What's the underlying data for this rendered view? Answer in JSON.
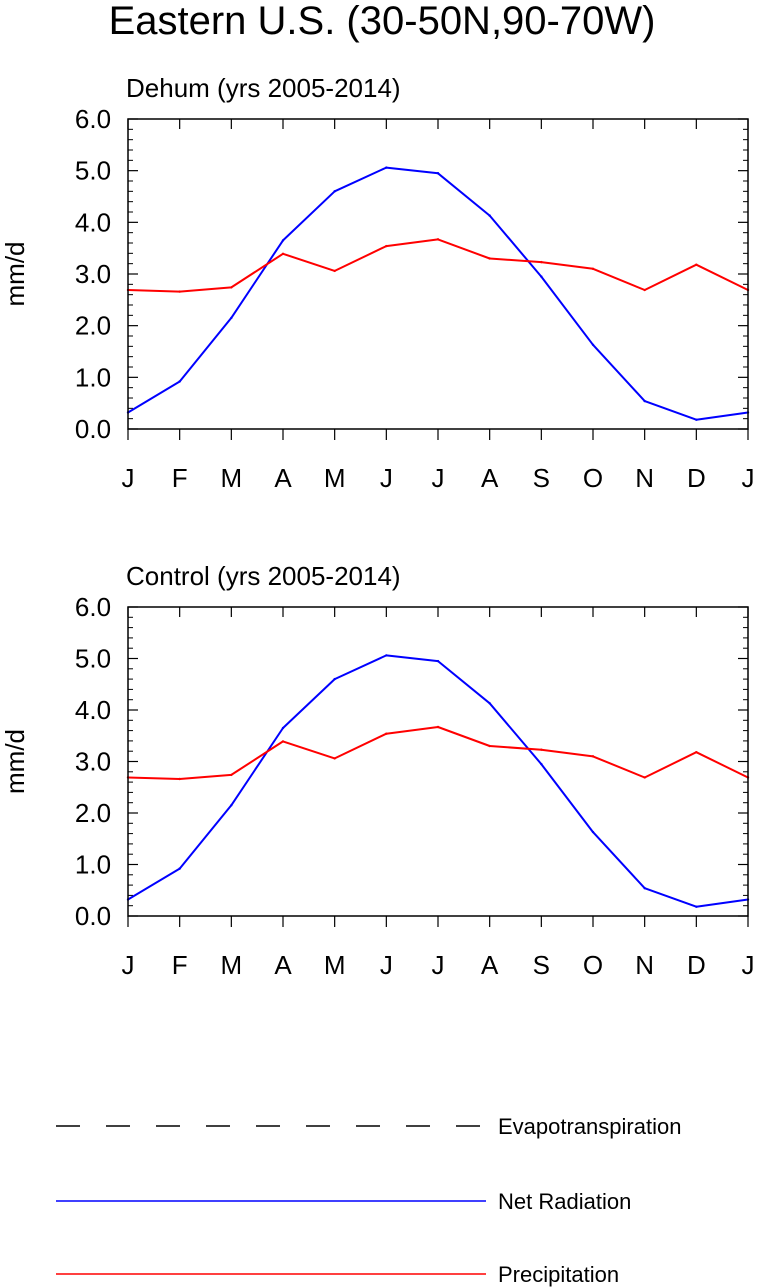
{
  "figure_title": "Eastern U.S. (30-50N,90-70W)",
  "chart_data": [
    {
      "type": "line",
      "title": "Dehum (yrs 2005-2014)",
      "xlabel": "",
      "ylabel": "mm/d",
      "categories": [
        "J",
        "F",
        "M",
        "A",
        "M",
        "J",
        "J",
        "A",
        "S",
        "O",
        "N",
        "D",
        "J"
      ],
      "ylim": [
        0,
        6
      ],
      "yticks": [
        "0.0",
        "1.0",
        "2.0",
        "3.0",
        "4.0",
        "5.0",
        "6.0"
      ],
      "grid": false,
      "series": [
        {
          "name": "Net Radiation",
          "color": "#0000ff",
          "values": [
            0.32,
            0.92,
            2.15,
            3.65,
            4.6,
            5.06,
            4.95,
            4.13,
            2.95,
            1.63,
            0.54,
            0.18,
            0.32
          ]
        },
        {
          "name": "Precipitation",
          "color": "#ff0000",
          "values": [
            2.69,
            2.66,
            2.74,
            3.39,
            3.06,
            3.54,
            3.67,
            3.3,
            3.23,
            3.1,
            2.69,
            3.18,
            2.69
          ]
        }
      ]
    },
    {
      "type": "line",
      "title": "Control (yrs 2005-2014)",
      "xlabel": "",
      "ylabel": "mm/d",
      "categories": [
        "J",
        "F",
        "M",
        "A",
        "M",
        "J",
        "J",
        "A",
        "S",
        "O",
        "N",
        "D",
        "J"
      ],
      "ylim": [
        0,
        6
      ],
      "yticks": [
        "0.0",
        "1.0",
        "2.0",
        "3.0",
        "4.0",
        "5.0",
        "6.0"
      ],
      "grid": false,
      "series": [
        {
          "name": "Net Radiation",
          "color": "#0000ff",
          "values": [
            0.32,
            0.92,
            2.15,
            3.65,
            4.6,
            5.06,
            4.95,
            4.13,
            2.95,
            1.63,
            0.54,
            0.18,
            0.32
          ]
        },
        {
          "name": "Precipitation",
          "color": "#ff0000",
          "values": [
            2.69,
            2.66,
            2.74,
            3.39,
            3.06,
            3.54,
            3.67,
            3.3,
            3.23,
            3.1,
            2.69,
            3.18,
            2.69
          ]
        }
      ]
    }
  ],
  "legend": {
    "placement": "bottom",
    "entries": [
      {
        "label": "Evapotranspiration",
        "color": "#000000",
        "style": "dashed"
      },
      {
        "label": "Net Radiation",
        "color": "#0000ff",
        "style": "solid"
      },
      {
        "label": "Precipitation",
        "color": "#ff0000",
        "style": "solid"
      }
    ]
  }
}
